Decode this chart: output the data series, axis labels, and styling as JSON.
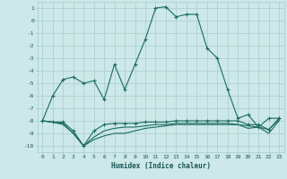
{
  "xlabel": "Humidex (Indice chaleur)",
  "background_color": "#cce8e8",
  "grid_color": "#aacccc",
  "line_color": "#1a6b5e",
  "xlim": [
    -0.5,
    23.5
  ],
  "ylim": [
    -10.5,
    1.5
  ],
  "xtick_labels": [
    "0",
    "1",
    "2",
    "3",
    "4",
    "5",
    "6",
    "7",
    "8",
    "9",
    "10",
    "11",
    "12",
    "13",
    "14",
    "15",
    "16",
    "17",
    "18",
    "19",
    "20",
    "21",
    "22",
    "23"
  ],
  "ytick_values": [
    1,
    0,
    -1,
    -2,
    -3,
    -4,
    -5,
    -6,
    -7,
    -8,
    -9,
    -10
  ],
  "line1_x": [
    0,
    1,
    2,
    3,
    4,
    5,
    6,
    7,
    8,
    9,
    10,
    11,
    12,
    13,
    14,
    15,
    16,
    17,
    18,
    19,
    20,
    21,
    22,
    23
  ],
  "line1_y": [
    -8.0,
    -6.0,
    -4.7,
    -4.5,
    -5.0,
    -4.8,
    -6.3,
    -3.5,
    -5.5,
    -3.5,
    -1.5,
    1.0,
    1.1,
    0.3,
    0.5,
    0.5,
    -2.2,
    -3.0,
    -5.5,
    -7.8,
    -7.5,
    -8.5,
    -7.8,
    -7.8
  ],
  "line2_x": [
    0,
    1,
    2,
    3,
    4,
    5,
    6,
    7,
    8,
    9,
    10,
    11,
    12,
    13,
    14,
    15,
    16,
    17,
    18,
    19,
    20,
    21,
    22,
    23
  ],
  "line2_y": [
    -8.0,
    -8.1,
    -8.1,
    -8.8,
    -10.0,
    -8.8,
    -8.3,
    -8.2,
    -8.2,
    -8.2,
    -8.1,
    -8.1,
    -8.1,
    -8.0,
    -8.0,
    -8.0,
    -8.0,
    -8.0,
    -8.0,
    -8.0,
    -8.3,
    -8.3,
    -8.7,
    -7.8
  ],
  "line3_x": [
    0,
    1,
    2,
    3,
    4,
    5,
    6,
    7,
    8,
    9,
    10,
    11,
    12,
    13,
    14,
    15,
    16,
    17,
    18,
    19,
    20,
    21,
    22,
    23
  ],
  "line3_y": [
    -8.0,
    -8.1,
    -8.2,
    -9.0,
    -10.0,
    -9.3,
    -8.8,
    -8.6,
    -8.5,
    -8.5,
    -8.4,
    -8.3,
    -8.3,
    -8.2,
    -8.2,
    -8.2,
    -8.2,
    -8.2,
    -8.2,
    -8.3,
    -8.4,
    -8.5,
    -8.7,
    -7.9
  ],
  "line4_x": [
    0,
    1,
    2,
    3,
    4,
    5,
    6,
    7,
    8,
    9,
    10,
    11,
    12,
    13,
    14,
    15,
    16,
    17,
    18,
    19,
    20,
    21,
    22,
    23
  ],
  "line4_y": [
    -8.0,
    -8.1,
    -8.3,
    -9.0,
    -10.0,
    -9.5,
    -9.2,
    -9.0,
    -9.0,
    -8.8,
    -8.6,
    -8.5,
    -8.4,
    -8.3,
    -8.3,
    -8.3,
    -8.3,
    -8.3,
    -8.3,
    -8.3,
    -8.6,
    -8.5,
    -9.0,
    -8.0
  ]
}
